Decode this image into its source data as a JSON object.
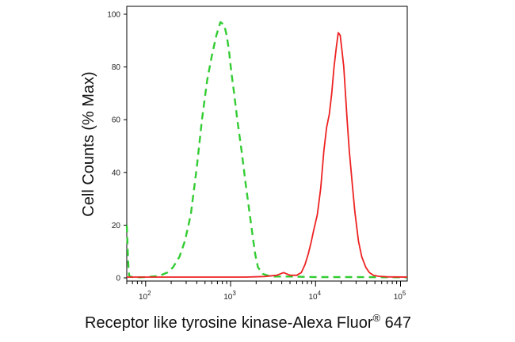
{
  "chart_data": {
    "type": "line",
    "title": "",
    "xlabel": "Receptor like tyrosine kinase-Alexa Fluor",
    "xlabel_superscript": "®",
    "xlabel_suffix": " 647",
    "ylabel": "Cell Counts (% Max)",
    "xscale": "log",
    "xlim": [
      60,
      120000
    ],
    "ylim": [
      0,
      100
    ],
    "x_ticks": [
      {
        "value": 100,
        "base": "10",
        "exp": "2"
      },
      {
        "value": 1000,
        "base": "10",
        "exp": "3"
      },
      {
        "value": 10000,
        "base": "10",
        "exp": "4"
      },
      {
        "value": 100000,
        "base": "10",
        "exp": "5"
      }
    ],
    "y_ticks": [
      0,
      20,
      40,
      60,
      80,
      100
    ],
    "grid": false,
    "legend": "none",
    "series": [
      {
        "color": "#33cc33",
        "style": "dashed",
        "x": [
          60,
          61,
          62,
          63,
          64,
          66,
          70,
          80,
          100,
          130,
          150,
          180,
          210,
          250,
          290,
          340,
          400,
          460,
          530,
          600,
          680,
          760,
          840,
          900,
          960,
          1020,
          1100,
          1200,
          1350,
          1500,
          1650,
          1800,
          1950,
          2100,
          2400,
          3000,
          5000,
          10000,
          30000,
          120000
        ],
        "y": [
          20,
          14,
          8,
          3,
          1,
          0.5,
          0.3,
          0.2,
          0.3,
          0.6,
          1,
          2,
          4,
          8,
          14,
          24,
          42,
          60,
          75,
          84,
          92,
          97,
          96,
          92,
          86,
          78,
          70,
          60,
          48,
          36,
          26,
          17,
          9,
          4,
          1.5,
          0.5,
          0.5,
          0.3,
          0.3,
          0.2
        ]
      },
      {
        "color": "#ee2222",
        "style": "solid",
        "x": [
          60,
          500,
          1500,
          2500,
          3500,
          4200,
          5000,
          6000,
          6800,
          7500,
          8200,
          8800,
          9500,
          10500,
          11500,
          12500,
          13500,
          14500,
          15500,
          16500,
          17500,
          18500,
          19500,
          20500,
          21500,
          22500,
          23500,
          25000,
          27000,
          29000,
          32000,
          35000,
          39000,
          43000,
          48000,
          55000,
          70000,
          120000
        ],
        "y": [
          0.3,
          0.3,
          0.3,
          0.5,
          1,
          2,
          1,
          1,
          2,
          5,
          9,
          13,
          18,
          24,
          34,
          48,
          57,
          62,
          70,
          80,
          87,
          93,
          92,
          86,
          80,
          70,
          60,
          48,
          36,
          25,
          14,
          8,
          4,
          2,
          1,
          0.6,
          0.4,
          0.3
        ]
      }
    ]
  }
}
